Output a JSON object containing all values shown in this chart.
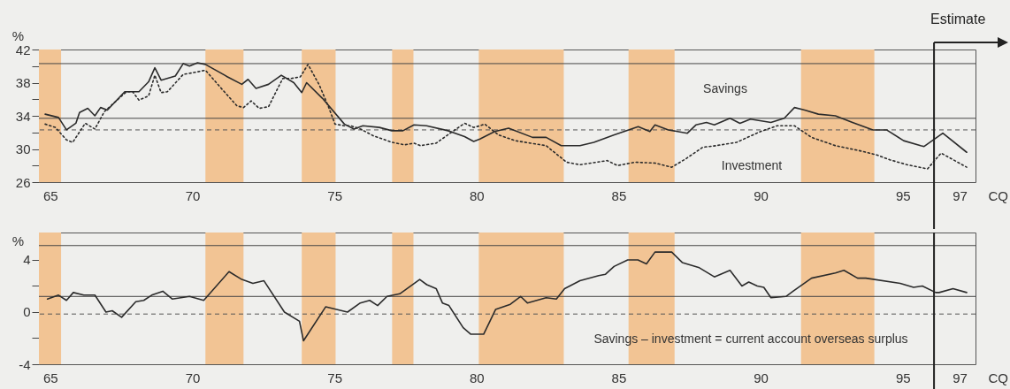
{
  "chart_data": [
    {
      "type": "line",
      "ylabel": "%",
      "xlabel": "CQ",
      "grid": false,
      "marker": "none",
      "xlim": [
        1964.6,
        1997.56
      ],
      "xticks": [
        {
          "value": 1965,
          "label": "65"
        },
        {
          "value": 1970,
          "label": "70"
        },
        {
          "value": 1975,
          "label": "75"
        },
        {
          "value": 1980,
          "label": "80"
        },
        {
          "value": 1985,
          "label": "85"
        },
        {
          "value": 1990,
          "label": "90"
        },
        {
          "value": 1995,
          "label": "95"
        },
        {
          "value": 1997,
          "label": "97"
        }
      ],
      "ylim": [
        26,
        42
      ],
      "yticks": [
        26,
        {
          "value": 28,
          "label": null
        },
        30,
        {
          "value": 32,
          "label": null
        },
        34,
        {
          "value": 36,
          "label": null
        },
        38,
        {
          "value": 40,
          "label": null
        },
        42
      ],
      "series": [
        {
          "color": "#2b2b2b",
          "line_style": "solid",
          "x": [
            1964.82,
            1965.29,
            1965.57,
            1965.9,
            1966.03,
            1966.32,
            1966.57,
            1966.77,
            1967.01,
            1967.62,
            1968.12,
            1968.46,
            1968.68,
            1968.9,
            1969.4,
            1969.68,
            1969.9,
            1970.18,
            1970.46,
            1971.24,
            1971.74,
            1971.96,
            1972.24,
            1972.68,
            1973.13,
            1973.57,
            1973.85,
            1974.02,
            1974.58,
            1975.35,
            1975.69,
            1976.0,
            1976.58,
            1977.02,
            1977.41,
            1977.8,
            1978.24,
            1979.0,
            1979.58,
            1979.9,
            1980.12,
            1980.64,
            1981.13,
            1981.97,
            1982.45,
            1982.98,
            1983.64,
            1984.13,
            1984.85,
            1985.69,
            1986.1,
            1986.28,
            1986.75,
            1987.42,
            1987.72,
            1988.09,
            1988.37,
            1988.92,
            1989.27,
            1989.64,
            1990.36,
            1990.83,
            1991.19,
            1991.55,
            1992.03,
            1992.63,
            1993.23,
            1993.95,
            1994.43,
            1995.03,
            1995.63,
            1995.75,
            1996.41,
            1997.25
          ],
          "values": [
            34.2,
            33.8,
            32.3,
            33.1,
            34.4,
            34.9,
            34.0,
            35.0,
            34.7,
            36.9,
            36.9,
            38.1,
            39.8,
            38.3,
            38.8,
            40.3,
            40.0,
            40.4,
            40.2,
            38.7,
            37.8,
            38.4,
            37.3,
            37.8,
            38.9,
            38.0,
            36.8,
            38.0,
            36.1,
            33.0,
            32.4,
            32.8,
            32.6,
            32.2,
            32.2,
            32.9,
            32.8,
            32.2,
            31.5,
            30.9,
            31.2,
            32.1,
            32.5,
            31.4,
            31.4,
            30.4,
            30.4,
            30.8,
            31.7,
            32.7,
            32.1,
            32.9,
            32.3,
            31.9,
            32.9,
            33.2,
            32.9,
            33.7,
            33.1,
            33.6,
            33.2,
            33.7,
            35.0,
            34.7,
            34.2,
            34.0,
            33.2,
            32.3,
            32.3,
            31.0,
            30.4,
            30.3,
            31.9,
            29.6
          ]
        },
        {
          "color": "#2b2b2b",
          "line_style": "dotted",
          "x": [
            1964.82,
            1965.18,
            1965.57,
            1965.79,
            1966.23,
            1966.57,
            1966.9,
            1967.68,
            1967.9,
            1968.12,
            1968.46,
            1968.68,
            1968.9,
            1969.12,
            1969.68,
            1970.02,
            1970.46,
            1971.02,
            1971.57,
            1971.8,
            1972.07,
            1972.35,
            1972.68,
            1973.18,
            1973.46,
            1973.8,
            1974.07,
            1974.47,
            1974.8,
            1975.02,
            1975.35,
            1975.58,
            1975.92,
            1976.36,
            1977.03,
            1977.47,
            1977.8,
            1978.02,
            1978.58,
            1979.03,
            1979.58,
            1979.9,
            1980.12,
            1980.29,
            1980.77,
            1981.36,
            1982.45,
            1983.17,
            1983.64,
            1984.6,
            1984.96,
            1985.57,
            1986.28,
            1986.87,
            1987.36,
            1987.96,
            1988.43,
            1989.15,
            1989.99,
            1990.58,
            1991.19,
            1991.79,
            1992.63,
            1993.47,
            1994.07,
            1994.54,
            1995.15,
            1995.87,
            1996.35,
            1997.25
          ],
          "values": [
            33.0,
            32.6,
            31.1,
            30.8,
            33.1,
            32.4,
            34.5,
            36.9,
            36.9,
            35.9,
            36.4,
            38.9,
            36.8,
            36.9,
            39.0,
            39.2,
            39.5,
            37.3,
            35.2,
            35.0,
            35.8,
            34.9,
            35.1,
            38.5,
            38.5,
            38.7,
            40.2,
            37.7,
            35.0,
            33.0,
            32.8,
            32.8,
            32.4,
            31.6,
            30.8,
            30.5,
            30.7,
            30.4,
            30.7,
            31.8,
            33.1,
            32.6,
            32.8,
            33.0,
            31.7,
            31.0,
            30.4,
            28.4,
            28.1,
            28.6,
            28.0,
            28.4,
            28.3,
            27.8,
            28.8,
            30.2,
            30.4,
            30.8,
            32.1,
            32.8,
            32.8,
            31.4,
            30.4,
            29.8,
            29.3,
            28.7,
            28.1,
            27.6,
            29.5,
            27.8
          ]
        }
      ],
      "bands": [
        {
          "axis": "x",
          "from": 1964.6,
          "to": 1965.38,
          "color": "#f2c494"
        },
        {
          "axis": "x",
          "from": 1970.46,
          "to": 1971.8,
          "color": "#f2c494"
        },
        {
          "axis": "x",
          "from": 1973.85,
          "to": 1975.04,
          "color": "#f2c494"
        },
        {
          "axis": "x",
          "from": 1977.03,
          "to": 1977.78,
          "color": "#f2c494"
        },
        {
          "axis": "x",
          "from": 1980.08,
          "to": 1983.07,
          "color": "#f2c494"
        },
        {
          "axis": "x",
          "from": 1985.35,
          "to": 1986.97,
          "color": "#f2c494"
        },
        {
          "axis": "x",
          "from": 1991.42,
          "to": 1994.0,
          "color": "#f2c494"
        }
      ],
      "ref_lines": [
        {
          "axis": "y",
          "value": 40.3,
          "color": "#444444",
          "line_style": "solid"
        },
        {
          "axis": "y",
          "value": 33.7,
          "color": "#444444",
          "line_style": "solid"
        },
        {
          "axis": "y",
          "value": 32.3,
          "color": "#555555",
          "line_style": "dashed"
        },
        {
          "axis": "x",
          "value": 1996.1,
          "label": "Estimate",
          "color": "#222222",
          "line_style": "solid"
        }
      ],
      "annotations": [
        "Savings",
        "Investment"
      ]
    },
    {
      "type": "line",
      "ylabel": "%",
      "xlabel": "CQ",
      "grid": false,
      "marker": "none",
      "xlim": [
        1964.6,
        1997.56
      ],
      "xticks": [
        {
          "value": 1965,
          "label": "65"
        },
        {
          "value": 1970,
          "label": "70"
        },
        {
          "value": 1975,
          "label": "75"
        },
        {
          "value": 1980,
          "label": "80"
        },
        {
          "value": 1985,
          "label": "85"
        },
        {
          "value": 1990,
          "label": "90"
        },
        {
          "value": 1995,
          "label": "95"
        },
        {
          "value": 1997,
          "label": "97"
        }
      ],
      "ylim": [
        -4,
        6.1
      ],
      "yticks": [
        -4,
        {
          "value": -2,
          "label": null
        },
        0,
        {
          "value": 2,
          "label": null
        },
        4
      ],
      "series": [
        {
          "color": "#2b2b2b",
          "line_style": "solid",
          "x": [
            1964.9,
            1965.29,
            1965.57,
            1965.81,
            1966.18,
            1966.57,
            1966.96,
            1967.18,
            1967.51,
            1968.01,
            1968.29,
            1968.57,
            1968.96,
            1969.29,
            1969.9,
            1970.4,
            1971.29,
            1971.74,
            1972.13,
            1972.52,
            1973.24,
            1973.77,
            1973.91,
            1974.69,
            1975.46,
            1975.91,
            1976.24,
            1976.52,
            1976.85,
            1977.3,
            1978.0,
            1978.25,
            1978.58,
            1978.8,
            1979.03,
            1979.53,
            1979.8,
            1980.25,
            1980.67,
            1981.19,
            1981.55,
            1981.79,
            1982.45,
            1982.81,
            1983.1,
            1983.64,
            1984.3,
            1984.54,
            1984.84,
            1985.32,
            1985.68,
            1985.98,
            1986.28,
            1986.87,
            1987.24,
            1987.84,
            1988.37,
            1988.92,
            1989.34,
            1989.58,
            1989.88,
            1990.11,
            1990.36,
            1990.89,
            1991.14,
            1991.79,
            1992.63,
            1992.93,
            1993.41,
            1993.7,
            1994.91,
            1995.38,
            1995.69,
            1996.16,
            1996.28,
            1996.77,
            1997.25
          ],
          "values": [
            1.0,
            1.3,
            0.9,
            1.5,
            1.3,
            1.3,
            0.0,
            0.1,
            -0.4,
            0.8,
            0.9,
            1.3,
            1.6,
            1.0,
            1.2,
            0.9,
            3.1,
            2.5,
            2.2,
            2.4,
            0.0,
            -0.7,
            -2.2,
            0.4,
            0.0,
            0.7,
            0.9,
            0.5,
            1.2,
            1.4,
            2.5,
            2.1,
            1.8,
            0.7,
            0.5,
            -1.2,
            -1.7,
            -1.7,
            0.2,
            0.6,
            1.2,
            0.7,
            1.1,
            1.0,
            1.8,
            2.4,
            2.8,
            2.9,
            3.5,
            4.0,
            4.0,
            3.7,
            4.6,
            4.6,
            3.8,
            3.4,
            2.7,
            3.2,
            2.0,
            2.3,
            2.0,
            1.9,
            1.1,
            1.2,
            1.6,
            2.6,
            3.0,
            3.2,
            2.6,
            2.6,
            2.2,
            1.9,
            2.0,
            1.5,
            1.5,
            1.8,
            1.5
          ]
        }
      ],
      "bands": [
        {
          "axis": "x",
          "from": 1964.6,
          "to": 1965.38,
          "color": "#f2c494"
        },
        {
          "axis": "x",
          "from": 1970.46,
          "to": 1971.8,
          "color": "#f2c494"
        },
        {
          "axis": "x",
          "from": 1973.85,
          "to": 1975.04,
          "color": "#f2c494"
        },
        {
          "axis": "x",
          "from": 1977.03,
          "to": 1977.78,
          "color": "#f2c494"
        },
        {
          "axis": "x",
          "from": 1980.08,
          "to": 1983.07,
          "color": "#f2c494"
        },
        {
          "axis": "x",
          "from": 1985.35,
          "to": 1986.97,
          "color": "#f2c494"
        },
        {
          "axis": "x",
          "from": 1991.42,
          "to": 1994.0,
          "color": "#f2c494"
        }
      ],
      "ref_lines": [
        {
          "axis": "y",
          "value": 5.1,
          "color": "#444444",
          "line_style": "solid"
        },
        {
          "axis": "y",
          "value": 1.2,
          "color": "#444444",
          "line_style": "solid"
        },
        {
          "axis": "y",
          "value": -0.15,
          "color": "#555555",
          "line_style": "dashed"
        },
        {
          "axis": "x",
          "value": 1996.1,
          "color": "#222222",
          "line_style": "solid"
        }
      ],
      "annotations": [
        "Savings – investment = current account overseas surplus"
      ]
    }
  ]
}
